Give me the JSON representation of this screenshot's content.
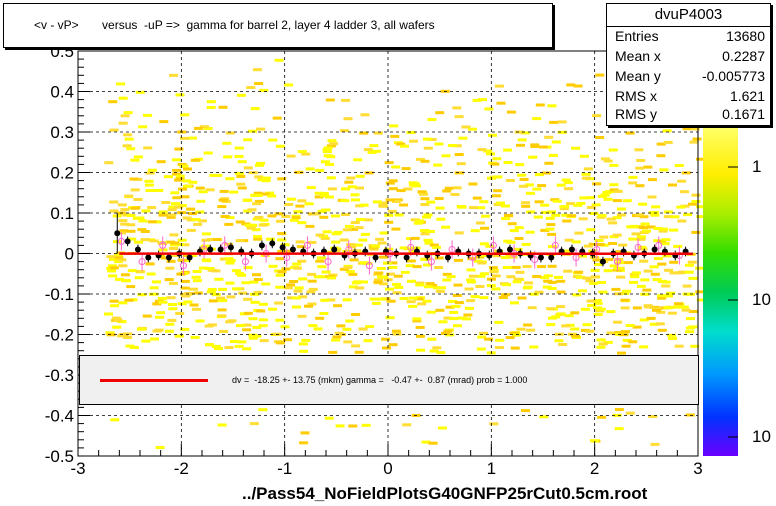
{
  "title": "<v - vP>       versus  -uP =>  gamma for barrel 2, layer 4 ladder 3, all wafers",
  "stats": {
    "name": "dvuP4003",
    "rows": [
      {
        "key": "Entries",
        "value": "13680"
      },
      {
        "key": "Mean x",
        "value": "0.2287"
      },
      {
        "key": "Mean y",
        "value": "-0.005773"
      },
      {
        "key": "RMS x",
        "value": "1.621"
      },
      {
        "key": "RMS y",
        "value": "0.1671"
      }
    ]
  },
  "fit_text": "dv =  -18.25 +- 13.75 (mkm) gamma =   -0.47 +-  0.87 (mrad) prob = 1.000",
  "file_label": "../Pass54_NoFieldPlotsG40GNFP25rCut0.5cm.root",
  "z_tick_labels": [
    "1",
    "10",
    "10"
  ],
  "colors": {
    "fit_line": "#ee0000",
    "profile_points": "#000000",
    "secondary_points": "#ff66cc",
    "density_low": "#ffff00",
    "density_mid": "#ffcc00"
  },
  "chart_data": {
    "type": "heatmap",
    "title": "<v - vP>       versus  -uP =>  gamma for barrel 2, layer 4 ladder 3, all wafers",
    "xlabel": "",
    "ylabel": "",
    "xlim": [
      -3,
      3
    ],
    "ylim": [
      -0.5,
      0.5
    ],
    "x_ticks": [
      "-3",
      "-2",
      "-1",
      "0",
      "1",
      "2",
      "3"
    ],
    "y_ticks": [
      "-0.5",
      "-0.4",
      "-0.3",
      "-0.2",
      "-0.1",
      "0",
      "0.1",
      "0.2",
      "0.3",
      "0.4",
      "0.5"
    ],
    "grid": true,
    "profile": {
      "x": [
        -2.62,
        -2.52,
        -2.42,
        -2.32,
        -2.22,
        -2.12,
        -2.02,
        -1.92,
        -1.82,
        -1.72,
        -1.62,
        -1.52,
        -1.42,
        -1.32,
        -1.22,
        -1.12,
        -1.02,
        -0.92,
        -0.82,
        -0.72,
        -0.62,
        -0.52,
        -0.42,
        -0.32,
        -0.22,
        -0.12,
        -0.02,
        0.08,
        0.18,
        0.28,
        0.38,
        0.48,
        0.58,
        0.68,
        0.78,
        0.88,
        0.98,
        1.08,
        1.18,
        1.28,
        1.38,
        1.48,
        1.58,
        1.68,
        1.78,
        1.88,
        1.98,
        2.08,
        2.18,
        2.28,
        2.38,
        2.48,
        2.58,
        2.68,
        2.78,
        2.88
      ],
      "y": [
        0.05,
        0.03,
        0.01,
        -0.01,
        -0.005,
        -0.01,
        0.0,
        -0.01,
        0.005,
        0.01,
        0.01,
        0.015,
        0.005,
        0.0,
        0.02,
        0.025,
        0.015,
        0.01,
        0.005,
        0.0,
        0.005,
        0.01,
        -0.005,
        0.0,
        0.005,
        -0.01,
        0.005,
        0.0,
        -0.01,
        0.005,
        -0.005,
        0.0,
        -0.01,
        0.005,
        0.0,
        0.0,
        -0.005,
        0.005,
        0.01,
        0.0,
        -0.005,
        -0.01,
        -0.01,
        0.005,
        0.01,
        0.005,
        0.0,
        -0.02,
        0.0,
        0.005,
        -0.005,
        0.0,
        0.01,
        0.005,
        -0.005,
        0.005
      ]
    },
    "secondary_points": {
      "x": [
        -2.58,
        -2.38,
        -2.18,
        -1.98,
        -1.78,
        -1.58,
        -1.38,
        -1.18,
        -0.98,
        -0.78,
        -0.58,
        -0.38,
        -0.18,
        0.02,
        0.22,
        0.42,
        0.62,
        0.82,
        1.02,
        1.22,
        1.42,
        1.62,
        1.82,
        2.02,
        2.22,
        2.42,
        2.62,
        2.82
      ],
      "y": [
        0.03,
        -0.02,
        0.02,
        -0.03,
        0.01,
        0.02,
        -0.02,
        0.0,
        -0.01,
        0.02,
        -0.02,
        0.01,
        -0.03,
        0.0,
        0.015,
        -0.02,
        0.01,
        -0.01,
        0.02,
        0.0,
        -0.015,
        0.02,
        -0.01,
        0.01,
        -0.02,
        0.015,
        0.02,
        -0.005
      ]
    },
    "fit_line": {
      "x": [
        -2.6,
        2.95
      ],
      "y": [
        -0.0003,
        -0.0006
      ]
    }
  }
}
